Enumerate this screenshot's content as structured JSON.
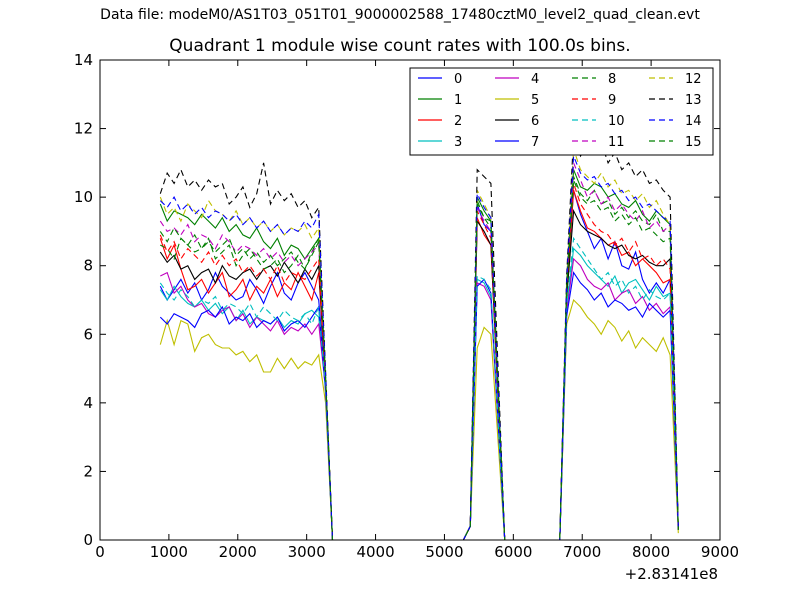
{
  "suptitle": "Data file: modeM0/AS1T03_051T01_9000002588_17480cztM0_level2_quad_clean.evt",
  "chart_data": {
    "type": "line",
    "title": "Quadrant 1 module wise count rates with 100.0s bins.",
    "xlabel": "",
    "ylabel": "",
    "x_offset_label": "+2.83141e8",
    "xlim": [
      0,
      9000
    ],
    "ylim": [
      0,
      14
    ],
    "xticks": [
      "0",
      "1000",
      "2000",
      "3000",
      "4000",
      "5000",
      "6000",
      "7000",
      "8000",
      "9000"
    ],
    "yticks": [
      "0",
      "2",
      "4",
      "6",
      "8",
      "10",
      "12",
      "14"
    ],
    "grid": false,
    "legend": {
      "placement": "top-right",
      "columns": 4
    },
    "segments": [
      {
        "x_start": 875,
        "step": 100,
        "count": 24,
        "ramp_to": 3275
      },
      {
        "x_start": 5475,
        "step": 100,
        "count": 3,
        "ramp_from": 5375,
        "ramp_to": 5875
      },
      {
        "x_start": 6875,
        "step": 100,
        "count": 15,
        "ramp_from": 6675,
        "ramp_to": 8375
      }
    ],
    "series": [
      {
        "name": "0",
        "color": "#0000ff",
        "dash": "solid",
        "seg1": [
          7.4,
          7.0,
          7.3,
          7.6,
          7.2,
          7.5,
          7.0,
          7.3,
          7.8,
          7.4,
          7.2,
          7.0,
          7.1,
          7.6,
          7.3,
          6.9,
          7.4,
          7.8,
          7.2,
          7.0,
          7.5,
          7.8,
          7.4,
          7.0
        ],
        "seg1_end": 4.6,
        "seg2": [
          9.8,
          9.2,
          9.0
        ],
        "seg3": [
          10.2,
          9.5,
          9.0,
          8.5,
          8.8,
          8.2,
          8.7,
          8.0,
          7.9,
          8.4,
          7.6,
          7.2,
          7.5,
          7.2,
          7.6
        ],
        "seg3_end": 0.3
      },
      {
        "name": "1",
        "color": "#008000",
        "dash": "solid",
        "seg1": [
          9.8,
          9.3,
          9.6,
          9.5,
          9.4,
          9.2,
          9.5,
          9.3,
          9.1,
          9.4,
          9.0,
          9.2,
          8.9,
          8.8,
          9.1,
          8.7,
          8.5,
          8.8,
          8.3,
          8.6,
          8.5,
          8.2,
          8.5,
          8.8
        ],
        "seg1_end": 4.7,
        "seg2": [
          10.0,
          9.6,
          9.3
        ],
        "seg3": [
          10.8,
          10.3,
          10.2,
          10.4,
          10.3,
          10.0,
          10.1,
          9.8,
          9.7,
          9.9,
          9.5,
          9.3,
          9.6,
          9.4,
          9.2
        ],
        "seg3_end": 0.3
      },
      {
        "name": "2",
        "color": "#ff0000",
        "dash": "solid",
        "seg1": [
          8.8,
          8.2,
          8.6,
          7.9,
          7.3,
          7.4,
          7.6,
          7.2,
          7.5,
          7.8,
          7.1,
          7.3,
          7.6,
          7.0,
          7.4,
          7.2,
          7.6,
          7.1,
          7.5,
          7.3,
          7.8,
          7.4,
          7.0,
          7.8
        ],
        "seg1_end": 4.6,
        "seg2": [
          9.4,
          8.9,
          8.6
        ],
        "seg3": [
          10.2,
          9.6,
          9.1,
          9.0,
          8.8,
          8.6,
          8.7,
          8.3,
          8.4,
          8.0,
          8.2,
          8.0,
          7.8,
          7.5,
          7.6
        ],
        "seg3_end": 0.3
      },
      {
        "name": "3",
        "color": "#00bfbf",
        "dash": "solid",
        "seg1": [
          7.3,
          7.0,
          7.4,
          7.1,
          6.9,
          6.8,
          7.0,
          6.7,
          6.9,
          6.6,
          6.8,
          6.4,
          6.7,
          6.3,
          6.5,
          6.4,
          6.3,
          6.5,
          6.2,
          6.4,
          6.3,
          6.6,
          6.7,
          6.5
        ],
        "seg1_end": 4.5,
        "seg2": [
          7.6,
          7.5,
          7.1
        ],
        "seg3": [
          8.5,
          8.3,
          8.0,
          7.8,
          7.6,
          7.4,
          7.7,
          7.2,
          7.5,
          7.6,
          7.3,
          7.0,
          7.4,
          7.1,
          7.2
        ],
        "seg3_end": 0.3
      },
      {
        "name": "4",
        "color": "#bf00bf",
        "dash": "solid",
        "seg1": [
          7.7,
          7.8,
          7.2,
          7.4,
          7.0,
          6.8,
          6.9,
          6.6,
          6.5,
          6.7,
          6.8,
          6.4,
          6.6,
          6.2,
          6.5,
          6.3,
          6.1,
          6.4,
          6.0,
          6.2,
          6.1,
          6.3,
          6.0,
          6.3
        ],
        "seg1_end": 4.4,
        "seg2": [
          7.5,
          7.4,
          7.0
        ],
        "seg3": [
          8.2,
          8.0,
          7.6,
          7.4,
          7.3,
          7.5,
          7.0,
          7.2,
          7.3,
          6.9,
          7.1,
          6.7,
          6.9,
          6.6,
          6.8
        ],
        "seg3_end": 0.3
      },
      {
        "name": "5",
        "color": "#bfbf00",
        "dash": "solid",
        "seg1": [
          5.7,
          6.4,
          5.7,
          6.4,
          6.3,
          5.5,
          5.9,
          6.0,
          5.7,
          5.6,
          5.6,
          5.4,
          5.5,
          5.2,
          5.4,
          4.9,
          4.9,
          5.3,
          5.0,
          5.3,
          5.0,
          5.2,
          5.1,
          5.4
        ],
        "seg1_end": 4.0,
        "seg2": [
          5.6,
          6.2,
          6.0
        ],
        "seg3": [
          7.0,
          6.8,
          6.5,
          6.3,
          6.0,
          6.4,
          6.2,
          5.8,
          6.1,
          5.6,
          5.9,
          5.7,
          5.5,
          5.9,
          5.4
        ],
        "seg3_end": 0.2
      },
      {
        "name": "6",
        "color": "#000000",
        "dash": "solid",
        "seg1": [
          8.4,
          8.1,
          8.3,
          7.9,
          8.0,
          7.6,
          7.8,
          7.9,
          7.5,
          8.0,
          7.7,
          7.6,
          7.8,
          7.9,
          7.6,
          7.9,
          8.0,
          7.7,
          8.1,
          7.8,
          7.5,
          7.9,
          7.6,
          8.0
        ],
        "seg1_end": 4.6,
        "seg2": [
          9.3,
          9.0,
          8.6
        ],
        "seg3": [
          9.6,
          9.2,
          9.0,
          8.9,
          8.8,
          8.6,
          8.5,
          8.6,
          8.3,
          8.2,
          8.3,
          8.1,
          8.0,
          8.0,
          8.2
        ],
        "seg3_end": 0.3
      },
      {
        "name": "7",
        "color": "#0000ff",
        "dash": "solid",
        "seg1": [
          6.5,
          6.3,
          6.6,
          6.5,
          6.4,
          6.2,
          6.6,
          6.7,
          6.5,
          6.8,
          6.3,
          6.5,
          6.4,
          6.6,
          6.2,
          6.4,
          6.3,
          6.5,
          6.1,
          6.3,
          6.4,
          6.2,
          6.5,
          6.8
        ],
        "seg1_end": 4.3,
        "seg2": [
          7.4,
          7.6,
          7.2
        ],
        "seg3": [
          7.8,
          7.5,
          7.3,
          7.0,
          7.2,
          6.8,
          7.0,
          6.9,
          6.7,
          6.8,
          6.5,
          6.9,
          6.7,
          6.5,
          6.7
        ],
        "seg3_end": 0.3
      },
      {
        "name": "8",
        "color": "#008000",
        "dash": "dashed",
        "seg1": [
          8.6,
          8.5,
          8.2,
          8.8,
          8.6,
          8.4,
          8.5,
          8.8,
          8.2,
          8.4,
          8.6,
          8.0,
          8.3,
          8.5,
          8.2,
          7.9,
          8.0,
          8.2,
          7.8,
          8.0,
          8.3,
          7.9,
          8.4,
          8.8
        ],
        "seg1_end": 4.7,
        "seg2": [
          9.9,
          9.4,
          9.3
        ],
        "seg3": [
          10.6,
          10.1,
          9.9,
          10.2,
          9.8,
          9.9,
          9.5,
          9.7,
          9.4,
          9.6,
          9.3,
          9.2,
          9.5,
          9.0,
          9.0
        ],
        "seg3_end": 0.3
      },
      {
        "name": "9",
        "color": "#ff0000",
        "dash": "dashed",
        "seg1": [
          8.9,
          8.4,
          8.7,
          8.2,
          8.5,
          8.3,
          8.1,
          8.4,
          8.0,
          8.3,
          8.0,
          8.2,
          7.8,
          8.0,
          7.7,
          7.9,
          7.6,
          8.0,
          7.5,
          7.8,
          7.7,
          7.6,
          7.9,
          8.2
        ],
        "seg1_end": 4.6,
        "seg2": [
          9.6,
          9.2,
          8.8
        ],
        "seg3": [
          10.4,
          9.8,
          9.5,
          9.2,
          9.0,
          8.9,
          8.6,
          8.8,
          8.4,
          8.7,
          8.2,
          8.3,
          8.0,
          8.2,
          7.9
        ],
        "seg3_end": 0.3
      },
      {
        "name": "10",
        "color": "#00bfbf",
        "dash": "dashed",
        "seg1": [
          7.5,
          7.2,
          7.0,
          7.3,
          7.1,
          6.8,
          7.0,
          6.9,
          7.1,
          6.7,
          6.9,
          6.8,
          6.6,
          6.9,
          6.5,
          6.8,
          6.6,
          6.4,
          6.7,
          6.5,
          6.4,
          6.6,
          6.3,
          6.8
        ],
        "seg1_end": 4.4,
        "seg2": [
          7.7,
          7.6,
          7.3
        ],
        "seg3": [
          8.8,
          8.5,
          8.2,
          7.9,
          7.6,
          7.8,
          7.4,
          7.6,
          7.2,
          7.4,
          7.0,
          7.3,
          7.1,
          7.0,
          7.2
        ],
        "seg3_end": 0.3
      },
      {
        "name": "11",
        "color": "#bf00bf",
        "dash": "dashed",
        "seg1": [
          9.3,
          9.0,
          9.1,
          8.9,
          9.2,
          8.7,
          8.9,
          8.8,
          8.5,
          8.9,
          8.7,
          8.4,
          8.6,
          8.5,
          8.3,
          8.5,
          8.2,
          8.4,
          8.1,
          8.3,
          8.0,
          8.2,
          8.4,
          8.6
        ],
        "seg1_end": 4.6,
        "seg2": [
          9.7,
          9.3,
          9.0
        ],
        "seg3": [
          11.0,
          10.5,
          10.0,
          10.2,
          9.8,
          10.0,
          9.6,
          9.8,
          9.5,
          9.3,
          9.6,
          9.1,
          9.3,
          9.0,
          9.2
        ],
        "seg3_end": 0.3
      },
      {
        "name": "12",
        "color": "#bfbf00",
        "dash": "dashed",
        "seg1": [
          10.0,
          9.5,
          9.7,
          9.3,
          9.8,
          9.6,
          9.4,
          9.9,
          9.6,
          9.5,
          9.3,
          9.6,
          9.2,
          9.4,
          9.1,
          9.3,
          9.0,
          9.2,
          8.9,
          9.1,
          9.0,
          9.2,
          8.8,
          9.1
        ],
        "seg1_end": 4.8,
        "seg2": [
          10.2,
          9.8,
          9.4
        ],
        "seg3": [
          11.4,
          10.8,
          10.6,
          10.4,
          10.7,
          10.3,
          10.5,
          10.1,
          10.2,
          9.9,
          10.1,
          9.7,
          9.9,
          9.5,
          9.2
        ],
        "seg3_end": 0.3
      },
      {
        "name": "13",
        "color": "#000000",
        "dash": "dashed",
        "seg1": [
          10.1,
          10.7,
          10.4,
          10.8,
          10.3,
          10.5,
          10.2,
          10.5,
          10.3,
          10.4,
          9.8,
          10.0,
          10.3,
          9.7,
          10.1,
          11.0,
          9.8,
          10.2,
          9.9,
          10.1,
          9.7,
          9.9,
          9.4,
          9.7
        ],
        "seg1_end": 4.9,
        "seg2": [
          10.8,
          10.6,
          10.4
        ],
        "seg3": [
          11.8,
          11.2,
          11.5,
          11.4,
          11.6,
          11.0,
          11.3,
          10.8,
          11.0,
          10.6,
          10.8,
          10.4,
          10.5,
          10.2,
          10.0
        ],
        "seg3_end": 0.3
      },
      {
        "name": "14",
        "color": "#0000ff",
        "dash": "dashed",
        "seg1": [
          9.9,
          9.7,
          10.0,
          9.6,
          9.8,
          9.5,
          9.7,
          9.4,
          9.6,
          9.5,
          9.3,
          9.5,
          9.2,
          9.4,
          9.1,
          9.3,
          9.0,
          9.2,
          8.9,
          9.1,
          9.0,
          9.3,
          9.1,
          9.5
        ],
        "seg1_end": 4.8,
        "seg2": [
          10.1,
          9.7,
          9.4
        ],
        "seg3": [
          11.2,
          10.7,
          10.5,
          10.6,
          10.3,
          10.4,
          10.1,
          10.2,
          9.9,
          10.0,
          9.7,
          9.8,
          9.6,
          9.4,
          9.3
        ],
        "seg3_end": 0.3
      },
      {
        "name": "15",
        "color": "#008000",
        "dash": "dashed",
        "seg1": [
          9.0,
          8.7,
          9.1,
          8.8,
          8.6,
          8.9,
          8.5,
          8.7,
          8.4,
          8.6,
          8.8,
          8.3,
          8.5,
          8.2,
          8.4,
          8.1,
          8.3,
          8.0,
          8.2,
          8.4,
          8.1,
          7.9,
          8.3,
          8.7
        ],
        "seg1_end": 4.7,
        "seg2": [
          9.8,
          9.4,
          9.1
        ],
        "seg3": [
          10.5,
          10.0,
          9.8,
          9.9,
          9.6,
          9.7,
          9.3,
          9.5,
          9.2,
          9.4,
          9.0,
          9.1,
          8.9,
          8.7,
          8.8
        ],
        "seg3_end": 0.3
      }
    ]
  }
}
